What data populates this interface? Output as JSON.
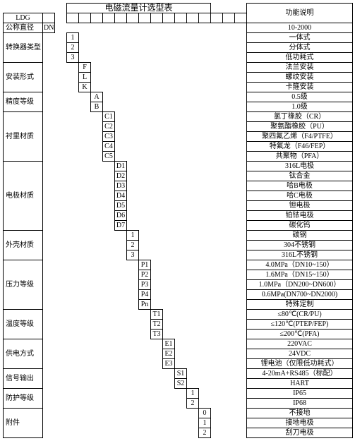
{
  "header": {
    "title": "电磁流量计选型表",
    "func": "功能说明",
    "ldg": "LDG",
    "dn": "DN"
  },
  "rows": {
    "nominal_diameter": {
      "label": "公称直径",
      "desc": "10-2000"
    },
    "converter": {
      "label": "转换器类型",
      "opts": [
        {
          "code": "1",
          "desc": "一体式"
        },
        {
          "code": "2",
          "desc": "分体式"
        },
        {
          "code": "3",
          "desc": "低功耗式"
        }
      ]
    },
    "install": {
      "label": "安装形式",
      "opts": [
        {
          "code": "F",
          "desc": "法兰安装"
        },
        {
          "code": "L",
          "desc": "螺纹安装"
        },
        {
          "code": "K",
          "desc": "卡箍安装"
        }
      ]
    },
    "accuracy": {
      "label": "精度等级",
      "opts": [
        {
          "code": "A",
          "desc": "0.5级"
        },
        {
          "code": "B",
          "desc": "1.0级"
        }
      ]
    },
    "lining": {
      "label": "衬里材质",
      "opts": [
        {
          "code": "C1",
          "desc": "氯丁橡胶（CR）"
        },
        {
          "code": "C2",
          "desc": "聚氨酯橡胶（PU）"
        },
        {
          "code": "C3",
          "desc": "聚四氟乙烯（F4/PTFE）"
        },
        {
          "code": "C4",
          "desc": "特氟龙（F46/FEP）"
        },
        {
          "code": "C5",
          "desc": "共聚物（PFA）"
        }
      ]
    },
    "electrode": {
      "label": "电极材质",
      "opts": [
        {
          "code": "D1",
          "desc": "316L电极"
        },
        {
          "code": "D2",
          "desc": "钛合金"
        },
        {
          "code": "D3",
          "desc": "哈B电极"
        },
        {
          "code": "D4",
          "desc": "哈C电极"
        },
        {
          "code": "D5",
          "desc": "钽电极"
        },
        {
          "code": "D6",
          "desc": "铂铱电极"
        },
        {
          "code": "D7",
          "desc": "碳化钨"
        }
      ]
    },
    "shell": {
      "label": "外壳材质",
      "opts": [
        {
          "code": "1",
          "desc": "碳钢"
        },
        {
          "code": "2",
          "desc": "304不锈钢"
        },
        {
          "code": "3",
          "desc": "316L不锈钢"
        }
      ]
    },
    "pressure": {
      "label": "压力等级",
      "opts": [
        {
          "code": "P1",
          "desc": "4.0MPa（DN10~150）"
        },
        {
          "code": "P2",
          "desc": "1.6MPa（DN15~150）"
        },
        {
          "code": "P3",
          "desc": "1.0MPa（DN200~DN600）"
        },
        {
          "code": "P4",
          "desc": "0.6MPa(DN700~DN2000)"
        },
        {
          "code": "Pn",
          "desc": "特殊定制"
        }
      ]
    },
    "temp": {
      "label": "温度等级",
      "opts": [
        {
          "code": "T1",
          "desc": "≤80℃(CR/PU)"
        },
        {
          "code": "T2",
          "desc": "≤120℃(PTEP/FEP)"
        },
        {
          "code": "T3",
          "desc": "≤200℃(PFA)"
        }
      ]
    },
    "power": {
      "label": "供电方式",
      "opts": [
        {
          "code": "E1",
          "desc": "220VAC"
        },
        {
          "code": "E2",
          "desc": "24VDC"
        },
        {
          "code": "E3",
          "desc": "锂电池（仅限低功耗式）"
        }
      ]
    },
    "signal": {
      "label": "信号输出",
      "opts": [
        {
          "code": "S1",
          "desc": "4-20mA+RS485（标配）"
        },
        {
          "code": "S2",
          "desc": "HART"
        }
      ]
    },
    "protect": {
      "label": "防护等级",
      "opts": [
        {
          "code": "1",
          "desc": "IP65"
        },
        {
          "code": "2",
          "desc": "IP68"
        }
      ]
    },
    "accessory": {
      "label": "附件",
      "opts": [
        {
          "code": "0",
          "desc": "不接地"
        },
        {
          "code": "1",
          "desc": "接地电极"
        },
        {
          "code": "2",
          "desc": "刮刀电极"
        }
      ]
    }
  }
}
